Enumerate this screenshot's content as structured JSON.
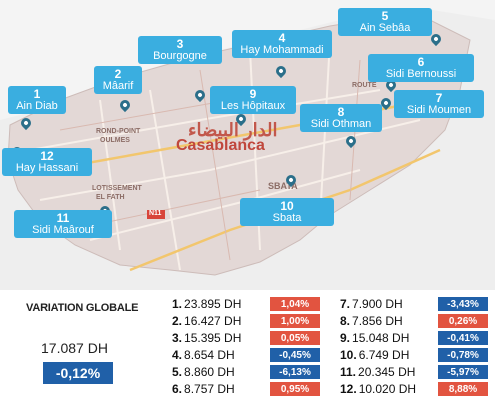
{
  "map": {
    "city_name": "Casablanca",
    "city_name_arabic": "الدار البيضاء",
    "street_labels": [
      "ROND-POINT",
      "OULMES",
      "LOTISSEMENT",
      "EL FATH",
      "SBATA",
      "N11",
      "ROUTE"
    ],
    "districts": [
      {
        "num": "1",
        "name": "Ain Diab"
      },
      {
        "num": "2",
        "name": "Mâarif"
      },
      {
        "num": "3",
        "name": "Bourgogne"
      },
      {
        "num": "4",
        "name": "Hay Mohammadi"
      },
      {
        "num": "5",
        "name": "Ain Sebâa"
      },
      {
        "num": "6",
        "name": "Sidi Bernoussi"
      },
      {
        "num": "7",
        "name": "Sidi Moumen"
      },
      {
        "num": "8",
        "name": "Sidi Othman"
      },
      {
        "num": "9",
        "name": "Les Hôpitaux"
      },
      {
        "num": "10",
        "name": "Sbata"
      },
      {
        "num": "11",
        "name": "Sidi Maârouf"
      },
      {
        "num": "12",
        "name": "Hay Hassani"
      }
    ]
  },
  "summary": {
    "title": "VARIATION GLOBALE",
    "value": "17.087 DH",
    "variation": "-0,12%"
  },
  "prices": [
    {
      "idx": "1.",
      "price": "23.895 DH",
      "variation": "1,04%",
      "direction": "up"
    },
    {
      "idx": "2.",
      "price": "16.427 DH",
      "variation": "1,00%",
      "direction": "up"
    },
    {
      "idx": "3.",
      "price": "15.395 DH",
      "variation": "0,05%",
      "direction": "up"
    },
    {
      "idx": "4.",
      "price": "8.654 DH",
      "variation": "-0,45%",
      "direction": "down"
    },
    {
      "idx": "5.",
      "price": "8.860 DH",
      "variation": "-6,13%",
      "direction": "down"
    },
    {
      "idx": "6.",
      "price": "8.757 DH",
      "variation": "0,95%",
      "direction": "up"
    },
    {
      "idx": "7.",
      "price": "7.900 DH",
      "variation": "-3,43%",
      "direction": "down"
    },
    {
      "idx": "8.",
      "price": "7.856 DH",
      "variation": "0,26%",
      "direction": "up"
    },
    {
      "idx": "9.",
      "price": "15.048 DH",
      "variation": "-0,41%",
      "direction": "down"
    },
    {
      "idx": "10.",
      "price": "6.749 DH",
      "variation": "-0,78%",
      "direction": "down"
    },
    {
      "idx": "11.",
      "price": "20.345 DH",
      "variation": "-5,97%",
      "direction": "down"
    },
    {
      "idx": "12.",
      "price": "10.020 DH",
      "variation": "8,88%",
      "direction": "up"
    }
  ],
  "colors": {
    "callout": "#3aaee0",
    "up": "#e25440",
    "down": "#2060a8",
    "map_land": "#e3d8d6"
  }
}
